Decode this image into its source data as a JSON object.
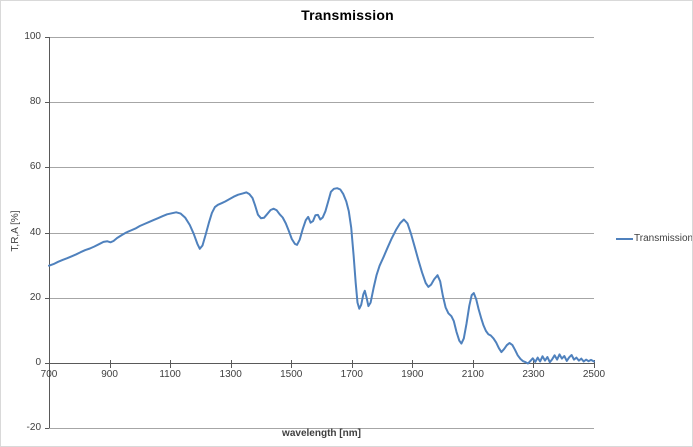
{
  "chart_data": {
    "type": "line",
    "title": "Transmission",
    "xlabel": "wavelength [nm]",
    "ylabel": "T,R,A [%]",
    "xlim": [
      700,
      2500
    ],
    "ylim": [
      -20,
      100
    ],
    "x_ticks": [
      700,
      900,
      1100,
      1300,
      1500,
      1700,
      1900,
      2100,
      2300,
      2500
    ],
    "y_ticks": [
      100,
      80,
      60,
      40,
      20,
      0,
      -20
    ],
    "grid": "horizontal",
    "legend_position": "right",
    "colors": {
      "series": "#4F81BD",
      "gridline": "#A6A6A6",
      "axis": "#595959",
      "text": "#3F3F3F"
    },
    "series": [
      {
        "name": "Transmission",
        "color": "#4F81BD",
        "points": [
          [
            700,
            29.8
          ],
          [
            715,
            30.3
          ],
          [
            730,
            31.0
          ],
          [
            745,
            31.6
          ],
          [
            760,
            32.1
          ],
          [
            775,
            32.7
          ],
          [
            790,
            33.3
          ],
          [
            805,
            34.0
          ],
          [
            820,
            34.6
          ],
          [
            835,
            35.1
          ],
          [
            850,
            35.7
          ],
          [
            865,
            36.4
          ],
          [
            880,
            37.1
          ],
          [
            893,
            37.3
          ],
          [
            903,
            37.0
          ],
          [
            913,
            37.4
          ],
          [
            925,
            38.3
          ],
          [
            940,
            39.2
          ],
          [
            955,
            40.0
          ],
          [
            970,
            40.6
          ],
          [
            985,
            41.2
          ],
          [
            1000,
            42.0
          ],
          [
            1015,
            42.6
          ],
          [
            1030,
            43.2
          ],
          [
            1045,
            43.8
          ],
          [
            1060,
            44.4
          ],
          [
            1075,
            45.0
          ],
          [
            1090,
            45.6
          ],
          [
            1105,
            45.9
          ],
          [
            1120,
            46.2
          ],
          [
            1135,
            45.8
          ],
          [
            1150,
            44.5
          ],
          [
            1165,
            42.3
          ],
          [
            1178,
            39.6
          ],
          [
            1190,
            36.5
          ],
          [
            1198,
            35.0
          ],
          [
            1207,
            36.0
          ],
          [
            1218,
            39.5
          ],
          [
            1228,
            43.0
          ],
          [
            1238,
            46.0
          ],
          [
            1248,
            47.8
          ],
          [
            1258,
            48.5
          ],
          [
            1270,
            49.0
          ],
          [
            1282,
            49.5
          ],
          [
            1295,
            50.2
          ],
          [
            1310,
            51.0
          ],
          [
            1325,
            51.6
          ],
          [
            1340,
            52.0
          ],
          [
            1352,
            52.3
          ],
          [
            1362,
            51.8
          ],
          [
            1372,
            50.6
          ],
          [
            1380,
            48.5
          ],
          [
            1390,
            45.5
          ],
          [
            1400,
            44.4
          ],
          [
            1410,
            44.5
          ],
          [
            1420,
            45.6
          ],
          [
            1432,
            46.9
          ],
          [
            1442,
            47.3
          ],
          [
            1452,
            46.8
          ],
          [
            1462,
            45.6
          ],
          [
            1472,
            44.6
          ],
          [
            1482,
            42.8
          ],
          [
            1492,
            40.5
          ],
          [
            1502,
            38.0
          ],
          [
            1512,
            36.5
          ],
          [
            1519,
            36.2
          ],
          [
            1528,
            37.8
          ],
          [
            1538,
            41.0
          ],
          [
            1548,
            43.8
          ],
          [
            1556,
            44.8
          ],
          [
            1564,
            43.0
          ],
          [
            1572,
            43.5
          ],
          [
            1580,
            45.3
          ],
          [
            1588,
            45.4
          ],
          [
            1596,
            44.0
          ],
          [
            1604,
            44.6
          ],
          [
            1613,
            46.5
          ],
          [
            1622,
            49.5
          ],
          [
            1631,
            52.5
          ],
          [
            1641,
            53.4
          ],
          [
            1652,
            53.6
          ],
          [
            1662,
            53.2
          ],
          [
            1672,
            51.8
          ],
          [
            1682,
            49.5
          ],
          [
            1690,
            46.5
          ],
          [
            1698,
            41.5
          ],
          [
            1706,
            33.0
          ],
          [
            1713,
            24.5
          ],
          [
            1719,
            18.5
          ],
          [
            1725,
            16.6
          ],
          [
            1731,
            17.8
          ],
          [
            1738,
            21.0
          ],
          [
            1743,
            22.1
          ],
          [
            1749,
            20.0
          ],
          [
            1755,
            17.4
          ],
          [
            1762,
            18.5
          ],
          [
            1772,
            23.0
          ],
          [
            1782,
            27.0
          ],
          [
            1792,
            29.8
          ],
          [
            1805,
            32.5
          ],
          [
            1818,
            35.3
          ],
          [
            1832,
            38.2
          ],
          [
            1846,
            40.8
          ],
          [
            1860,
            42.9
          ],
          [
            1872,
            44.0
          ],
          [
            1884,
            42.8
          ],
          [
            1896,
            39.5
          ],
          [
            1908,
            35.5
          ],
          [
            1920,
            31.5
          ],
          [
            1932,
            27.8
          ],
          [
            1944,
            24.5
          ],
          [
            1953,
            23.3
          ],
          [
            1962,
            24.0
          ],
          [
            1972,
            25.6
          ],
          [
            1983,
            26.9
          ],
          [
            1992,
            25.0
          ],
          [
            2001,
            20.5
          ],
          [
            2010,
            17.0
          ],
          [
            2019,
            15.2
          ],
          [
            2029,
            14.3
          ],
          [
            2037,
            12.8
          ],
          [
            2046,
            9.5
          ],
          [
            2055,
            6.8
          ],
          [
            2062,
            5.9
          ],
          [
            2070,
            7.5
          ],
          [
            2079,
            12.0
          ],
          [
            2088,
            17.5
          ],
          [
            2096,
            20.8
          ],
          [
            2103,
            21.4
          ],
          [
            2111,
            19.5
          ],
          [
            2119,
            16.5
          ],
          [
            2127,
            13.8
          ],
          [
            2135,
            11.5
          ],
          [
            2143,
            9.8
          ],
          [
            2151,
            8.8
          ],
          [
            2159,
            8.4
          ],
          [
            2168,
            7.5
          ],
          [
            2177,
            6.2
          ],
          [
            2186,
            4.5
          ],
          [
            2194,
            3.3
          ],
          [
            2203,
            4.2
          ],
          [
            2212,
            5.4
          ],
          [
            2221,
            6.1
          ],
          [
            2230,
            5.5
          ],
          [
            2239,
            4.0
          ],
          [
            2248,
            2.3
          ],
          [
            2257,
            1.2
          ],
          [
            2266,
            0.5
          ],
          [
            2274,
            0.2
          ],
          [
            2282,
            -0.2
          ],
          [
            2290,
            0.6
          ],
          [
            2298,
            1.4
          ],
          [
            2306,
            0.3
          ],
          [
            2314,
            1.6
          ],
          [
            2322,
            0.4
          ],
          [
            2330,
            2.0
          ],
          [
            2338,
            0.7
          ],
          [
            2346,
            1.8
          ],
          [
            2354,
            0.2
          ],
          [
            2362,
            1.1
          ],
          [
            2370,
            2.3
          ],
          [
            2378,
            1.0
          ],
          [
            2386,
            2.6
          ],
          [
            2394,
            1.3
          ],
          [
            2402,
            2.1
          ],
          [
            2410,
            0.6
          ],
          [
            2418,
            1.7
          ],
          [
            2426,
            2.4
          ],
          [
            2434,
            1.0
          ],
          [
            2442,
            1.6
          ],
          [
            2450,
            0.7
          ],
          [
            2458,
            1.3
          ],
          [
            2466,
            0.4
          ],
          [
            2474,
            1.0
          ],
          [
            2482,
            0.5
          ],
          [
            2490,
            0.9
          ],
          [
            2500,
            0.4
          ]
        ]
      }
    ]
  }
}
